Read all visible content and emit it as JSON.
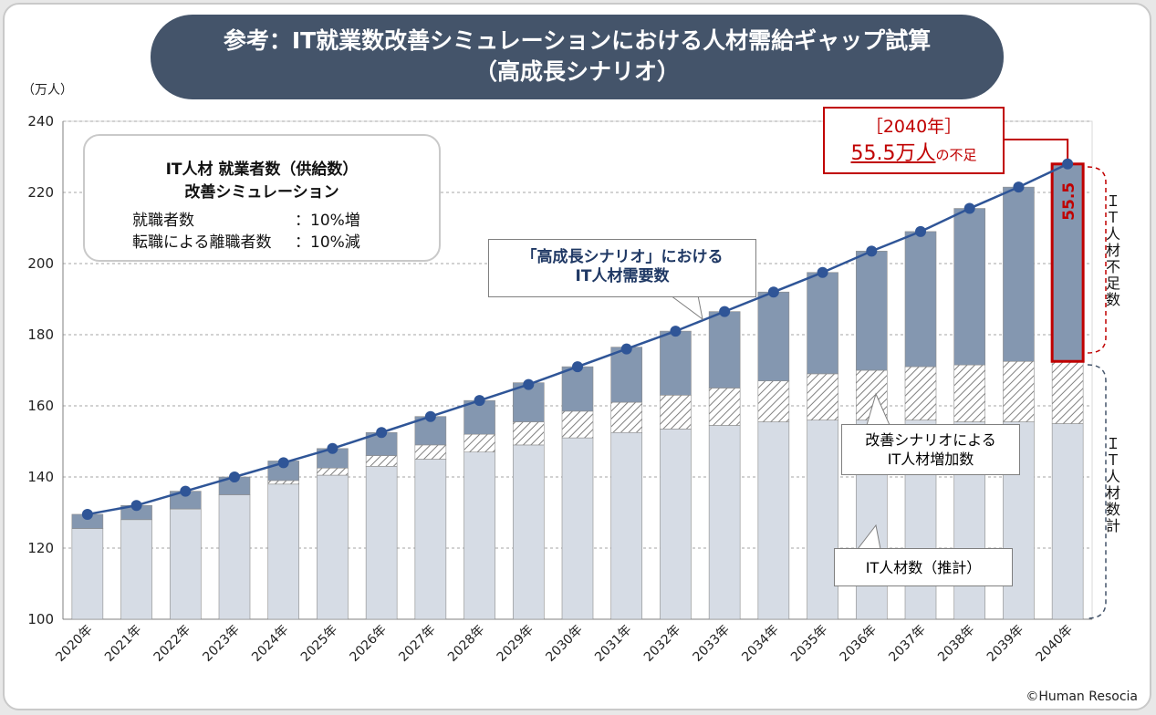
{
  "title": {
    "line1": "参考：IT就業数改善シミュレーションにおける人材需給ギャップ試算",
    "line2": "（高成長シナリオ）"
  },
  "unit_label": "（万人）",
  "credit": "©Human Resocia",
  "info_box": {
    "heading1": "IT人材 就業者数（供給数）",
    "heading2": "改善シミュレーション",
    "row1_label": "就職者数",
    "row1_value": "：10%増",
    "row2_label": "転職による離職者数",
    "row2_value": "：10%減"
  },
  "callouts": {
    "demand_line1": "「高成長シナリオ」における",
    "demand_line2": "IT人材需要数",
    "increase_line1": "改善シナリオによる",
    "increase_line2": "IT人材増加数",
    "estimate": "IT人材数（推計）",
    "shortage_year": "［2040年］",
    "shortage_value": "55.5万人",
    "shortage_suffix": "の不足",
    "shortage_bar_label": "55.5"
  },
  "side_labels": {
    "shortage": "ＩＴ人材不足数",
    "total": "ＩＴ人材数計"
  },
  "colors": {
    "base": "#d6dce5",
    "increase_stripe": "#7f7f7f",
    "gap": "#8497b0",
    "line": "#2f5597",
    "highlight": "#c00000"
  },
  "chart_data": {
    "type": "bar",
    "categories": [
      "2020年",
      "2021年",
      "2022年",
      "2023年",
      "2024年",
      "2025年",
      "2026年",
      "2027年",
      "2028年",
      "2029年",
      "2030年",
      "2031年",
      "2032年",
      "2033年",
      "2034年",
      "2035年",
      "2036年",
      "2037年",
      "2038年",
      "2039年",
      "2040年"
    ],
    "series": [
      {
        "name": "IT人材数（推計）",
        "values": [
          125.5,
          128,
          131,
          135,
          138,
          140.5,
          143,
          145,
          147,
          149,
          151,
          152.5,
          153.5,
          154.5,
          155.5,
          156,
          156,
          156,
          155.5,
          155.5,
          155
        ]
      },
      {
        "name": "改善シナリオによるIT人材増加数",
        "values": [
          0,
          0,
          0,
          0,
          1,
          2,
          3,
          4,
          5,
          6.5,
          7.5,
          8.5,
          9.5,
          10.5,
          11.5,
          13,
          14,
          15,
          16,
          17,
          17.5
        ]
      },
      {
        "name": "IT人材不足数",
        "values": [
          4,
          4,
          5,
          5,
          5.5,
          5.5,
          6.5,
          8,
          9.5,
          11,
          12.5,
          15.5,
          18,
          21.5,
          25,
          28.5,
          33.5,
          38,
          44,
          49,
          55.5
        ]
      },
      {
        "name": "「高成長シナリオ」におけるIT人材需要数",
        "type": "line",
        "values": [
          129.5,
          132,
          136,
          140,
          144,
          148,
          152.5,
          157,
          161.5,
          166,
          171,
          176,
          181,
          186.5,
          192,
          197.5,
          203.5,
          209,
          215.5,
          221.5,
          228
        ]
      }
    ],
    "ylim": [
      100,
      240
    ],
    "yticks": [
      100,
      120,
      140,
      160,
      180,
      200,
      220,
      240
    ],
    "ylabel": "（万人）",
    "grid": true
  }
}
